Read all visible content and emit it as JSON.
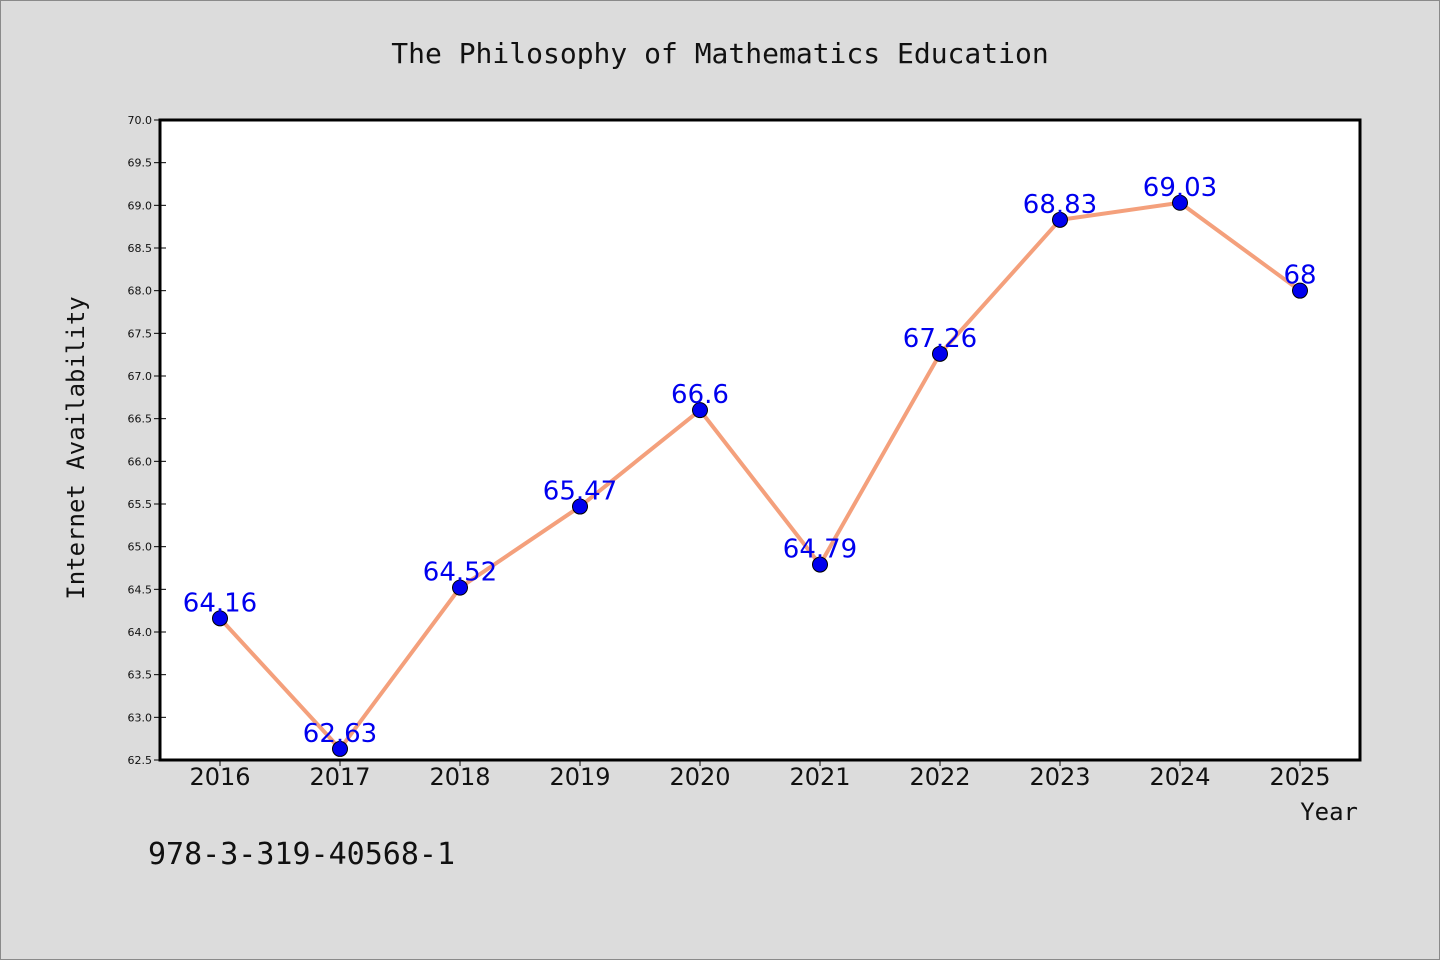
{
  "chart_data": {
    "type": "line",
    "title": "The Philosophy of Mathematics Education",
    "xlabel": "Year",
    "ylabel": "Internet Availability",
    "x": [
      "2016",
      "2017",
      "2018",
      "2019",
      "2020",
      "2021",
      "2022",
      "2023",
      "2024",
      "2025"
    ],
    "values": [
      64.16,
      62.63,
      64.52,
      65.47,
      66.6,
      64.79,
      67.26,
      68.83,
      69.03,
      68
    ],
    "data_labels": [
      "64.16",
      "62.63",
      "64.52",
      "65.47",
      "66.6",
      "64.79",
      "67.26",
      "68.83",
      "69.03",
      "68"
    ],
    "ylim": [
      62.5,
      70.0
    ],
    "yticks": [
      "62.5",
      "63.0",
      "63.5",
      "64.0",
      "64.5",
      "65.0",
      "65.5",
      "66.0",
      "66.5",
      "67.0",
      "67.5",
      "68.0",
      "68.5",
      "69.0",
      "69.5",
      "70.0"
    ],
    "grid": false,
    "legend": "none",
    "line_color": "#f4a07c",
    "marker_color": "#0000ee",
    "label_color": "#0000ee"
  },
  "footnote": "978-3-319-40568-1"
}
